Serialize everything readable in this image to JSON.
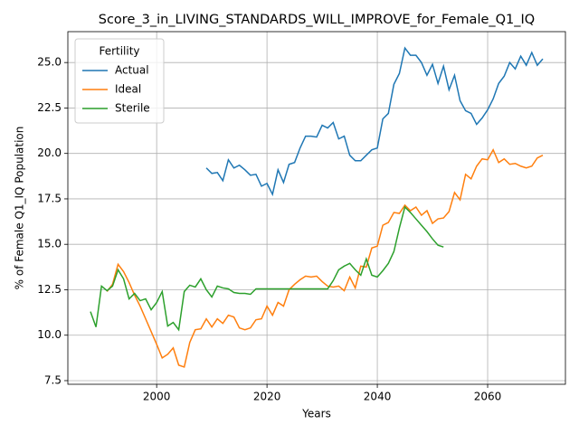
{
  "chart_data": {
    "type": "line",
    "title": "Score_3_in_LIVING_STANDARDS_WILL_IMPROVE_for_Female_Q1_IQ",
    "xlabel": "Years",
    "ylabel": "% of Female Q1_IQ Population",
    "xlim": [
      1983.9,
      2074.1
    ],
    "ylim": [
      7.3,
      26.7
    ],
    "xticks": [
      2000,
      2020,
      2040,
      2060
    ],
    "yticks": [
      {
        "value": 7.5,
        "label": "7.5"
      },
      {
        "value": 10,
        "label": "10.0"
      },
      {
        "value": 12.5,
        "label": "12.5"
      },
      {
        "value": 15,
        "label": "15.0"
      },
      {
        "value": 17.5,
        "label": "17.5"
      },
      {
        "value": 20,
        "label": "20.0"
      },
      {
        "value": 22.5,
        "label": "22.5"
      },
      {
        "value": 25,
        "label": "25.0"
      }
    ],
    "grid": true,
    "legend_title": "Fertility",
    "legend_loc": "upper left",
    "series": [
      {
        "name": "Actual",
        "color": "#1f77b4",
        "x": [
          2009,
          2010,
          2011,
          2012,
          2013,
          2014,
          2015,
          2016,
          2017,
          2018,
          2019,
          2020,
          2021,
          2022,
          2023,
          2024,
          2025,
          2026,
          2027,
          2028,
          2029,
          2030,
          2031,
          2032,
          2033,
          2034,
          2035,
          2036,
          2037,
          2038,
          2039,
          2040,
          2041,
          2042,
          2043,
          2044,
          2045,
          2046,
          2047,
          2048,
          2049,
          2050,
          2051,
          2052,
          2053,
          2054,
          2055,
          2056,
          2057,
          2058,
          2059,
          2060,
          2061,
          2062,
          2063,
          2064,
          2065,
          2066,
          2067,
          2068,
          2069,
          2070
        ],
        "values": [
          19.2,
          18.9,
          18.95,
          18.5,
          19.65,
          19.2,
          19.35,
          19.1,
          18.8,
          18.85,
          18.2,
          18.35,
          17.75,
          19.1,
          18.4,
          19.4,
          19.5,
          20.3,
          20.95,
          20.95,
          20.9,
          21.55,
          21.4,
          21.7,
          20.8,
          20.95,
          19.9,
          19.6,
          19.6,
          19.9,
          20.2,
          20.3,
          21.9,
          22.2,
          23.8,
          24.4,
          25.8,
          25.4,
          25.4,
          25.0,
          24.3,
          24.9,
          23.85,
          24.8,
          23.5,
          24.3,
          22.9,
          22.35,
          22.2,
          21.6,
          21.95,
          22.4,
          23.0,
          23.85,
          24.25,
          25.0,
          24.65,
          25.35,
          24.85,
          25.55,
          24.85,
          25.2
        ]
      },
      {
        "name": "Ideal",
        "color": "#ff7f0e",
        "x": [
          1991,
          1992,
          1993,
          1994,
          1995,
          1996,
          1997,
          1998,
          1999,
          2000,
          2001,
          2002,
          2003,
          2004,
          2005,
          2006,
          2007,
          2008,
          2009,
          2010,
          2011,
          2012,
          2013,
          2014,
          2015,
          2016,
          2017,
          2018,
          2019,
          2020,
          2021,
          2022,
          2023,
          2024,
          2025,
          2026,
          2027,
          2028,
          2029,
          2030,
          2031,
          2032,
          2033,
          2034,
          2035,
          2036,
          2037,
          2038,
          2039,
          2040,
          2041,
          2042,
          2043,
          2044,
          2045,
          2046,
          2047,
          2048,
          2049,
          2050,
          2051,
          2052,
          2053,
          2054,
          2055,
          2056,
          2057,
          2058,
          2059,
          2060,
          2061,
          2062,
          2063,
          2064,
          2065,
          2066,
          2067,
          2068,
          2069,
          2070
        ],
        "values": [
          12.4,
          12.8,
          13.9,
          13.5,
          12.9,
          12.2,
          11.6,
          10.9,
          10.2,
          9.5,
          8.75,
          8.95,
          9.3,
          8.35,
          8.25,
          9.6,
          10.3,
          10.35,
          10.9,
          10.45,
          10.9,
          10.65,
          11.1,
          11.0,
          10.4,
          10.3,
          10.4,
          10.85,
          10.9,
          11.6,
          11.1,
          11.8,
          11.6,
          12.5,
          12.8,
          13.05,
          13.25,
          13.2,
          13.25,
          12.95,
          12.7,
          12.65,
          12.7,
          12.45,
          13.2,
          12.6,
          13.8,
          13.75,
          14.8,
          14.9,
          16.05,
          16.2,
          16.75,
          16.7,
          17.15,
          16.85,
          17.05,
          16.6,
          16.85,
          16.15,
          16.4,
          16.45,
          16.8,
          17.85,
          17.45,
          18.85,
          18.6,
          19.3,
          19.7,
          19.65,
          20.2,
          19.5,
          19.7,
          19.4,
          19.45,
          19.3,
          19.2,
          19.3,
          19.75,
          19.9
        ]
      },
      {
        "name": "Sterile",
        "color": "#2ca02c",
        "x": [
          1988,
          1989,
          1990,
          1991,
          1992,
          1993,
          1994,
          1995,
          1996,
          1997,
          1998,
          1999,
          2000,
          2001,
          2002,
          2003,
          2004,
          2005,
          2006,
          2007,
          2008,
          2009,
          2010,
          2011,
          2012,
          2013,
          2014,
          2015,
          2016,
          2017,
          2018,
          2019,
          2020,
          2021,
          2022,
          2023,
          2024,
          2025,
          2026,
          2027,
          2028,
          2029,
          2030,
          2031,
          2032,
          2033,
          2034,
          2035,
          2036,
          2037,
          2038,
          2039,
          2040,
          2041,
          2042,
          2043,
          2044,
          2045,
          2046,
          2047,
          2048,
          2049,
          2050,
          2051,
          2052
        ],
        "values": [
          11.3,
          10.45,
          12.7,
          12.45,
          12.7,
          13.6,
          13.1,
          12.0,
          12.3,
          11.9,
          12.0,
          11.4,
          11.8,
          12.4,
          10.5,
          10.7,
          10.3,
          12.4,
          12.75,
          12.65,
          13.1,
          12.5,
          12.1,
          12.7,
          12.6,
          12.55,
          12.35,
          12.3,
          12.3,
          12.25,
          12.55,
          12.55,
          12.55,
          12.55,
          12.55,
          12.55,
          12.55,
          12.55,
          12.55,
          12.55,
          12.55,
          12.55,
          12.55,
          12.55,
          13.0,
          13.6,
          13.8,
          13.95,
          13.6,
          13.3,
          14.2,
          13.3,
          13.2,
          13.55,
          13.95,
          14.6,
          15.9,
          17.05,
          16.75,
          16.4,
          16.05,
          15.7,
          15.3,
          14.95,
          14.85
        ]
      }
    ]
  }
}
